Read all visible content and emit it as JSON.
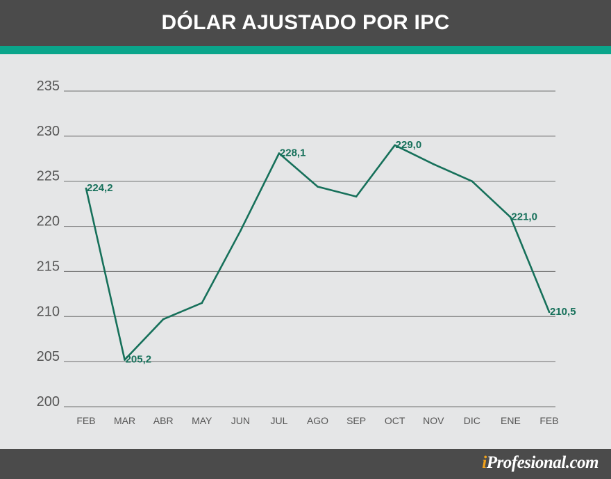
{
  "header": {
    "title": "DÓLAR AJUSTADO POR IPC"
  },
  "brand": {
    "logo_prefix": "i",
    "logo_rest": "Profesional.com",
    "logo_accent_color": "#f1a21b"
  },
  "colors": {
    "line": "#16705a",
    "header_bg": "#4b4b4b",
    "stripe": "#0aa58b",
    "plot_bg": "#e5e6e7",
    "grid": "#6d6d6d"
  },
  "chart_data": {
    "type": "line",
    "title": "DÓLAR AJUSTADO POR IPC",
    "xlabel": "",
    "ylabel": "",
    "ylim": [
      200,
      235
    ],
    "yticks": [
      200,
      205,
      210,
      215,
      220,
      225,
      230,
      235
    ],
    "categories": [
      "FEB",
      "MAR",
      "ABR",
      "MAY",
      "JUN",
      "JUL",
      "AGO",
      "SEP",
      "OCT",
      "NOV",
      "DIC",
      "ENE",
      "FEB"
    ],
    "values": [
      224.2,
      205.2,
      209.7,
      211.5,
      219.5,
      228.1,
      224.4,
      223.3,
      229.0,
      226.9,
      225.0,
      221.0,
      210.5
    ],
    "data_labels": [
      {
        "index": 0,
        "text": "224,2"
      },
      {
        "index": 1,
        "text": "205,2"
      },
      {
        "index": 5,
        "text": "228,1"
      },
      {
        "index": 8,
        "text": "229,0"
      },
      {
        "index": 11,
        "text": "221,0"
      },
      {
        "index": 12,
        "text": "210,5"
      }
    ],
    "grid": true,
    "legend": "none"
  }
}
